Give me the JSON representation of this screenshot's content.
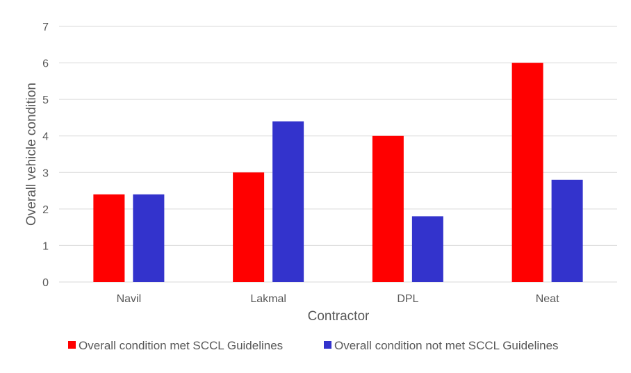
{
  "chart_data": {
    "type": "bar",
    "title": "",
    "xlabel": "Contractor",
    "ylabel": "Overall vehicle condition",
    "categories": [
      "Navil",
      "Lakmal",
      "DPL",
      "Neat"
    ],
    "series": [
      {
        "name": "Overall condition met SCCL Guidelines",
        "values": [
          2.4,
          3.0,
          4.0,
          6.0
        ],
        "color": "#ff0000"
      },
      {
        "name": "Overall condition not met SCCL Guidelines",
        "values": [
          2.4,
          4.4,
          1.8,
          2.8
        ],
        "color": "#3333cc"
      }
    ],
    "ylim": [
      0,
      7
    ],
    "yticks": [
      "0",
      "1",
      "2",
      "3",
      "4",
      "5",
      "6",
      "7"
    ],
    "grid": true,
    "legend": "bottom"
  }
}
